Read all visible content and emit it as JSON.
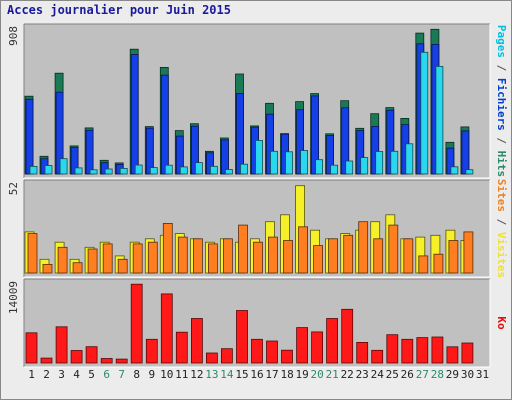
{
  "page": {
    "title": "Acces journalier pour Juin 2015"
  },
  "chart_data": [
    {
      "type": "bar",
      "title": "Pages / Fichiers / Hits",
      "categories": [
        "1",
        "2",
        "3",
        "4",
        "5",
        "6",
        "7",
        "8",
        "9",
        "10",
        "11",
        "12",
        "13",
        "14",
        "15",
        "16",
        "17",
        "18",
        "19",
        "20",
        "21",
        "22",
        "23",
        "24",
        "25",
        "26",
        "27",
        "28",
        "29",
        "30",
        "31"
      ],
      "weekend_days": [
        "6",
        "7",
        "13",
        "14",
        "20",
        "21",
        "27",
        "28"
      ],
      "ymax_label": "908",
      "ylim": [
        0,
        908
      ],
      "axis_label_parts": [
        {
          "text": "Pages",
          "color": "#00c0e0"
        },
        {
          "text": " / ",
          "color": "#555555"
        },
        {
          "text": "Fichiers",
          "color": "#0040d0"
        },
        {
          "text": " / ",
          "color": "#555555"
        },
        {
          "text": "Hits",
          "color": "#2a8a6a"
        }
      ],
      "series": [
        {
          "name": "Hits",
          "color": "#1a7a55",
          "values": [
            484,
            110,
            627,
            175,
            287,
            85,
            69,
            776,
            295,
            663,
            270,
            313,
            141,
            224,
            622,
            299,
            440,
            251,
            450,
            500,
            250,
            456,
            284,
            375,
            413,
            346,
            876,
            900,
            197,
            293,
            0
          ]
        },
        {
          "name": "Fichiers",
          "color": "#1540e8",
          "values": [
            465,
            95,
            509,
            165,
            272,
            70,
            60,
            743,
            285,
            615,
            236,
            297,
            132,
            212,
            501,
            291,
            372,
            248,
            400,
            486,
            240,
            412,
            270,
            296,
            397,
            307,
            810,
            806,
            161,
            268,
            0
          ]
        },
        {
          "name": "Pages",
          "color": "#2ad8ee",
          "values": [
            47,
            53,
            95,
            38,
            26,
            31,
            35,
            56,
            40,
            55,
            44,
            71,
            48,
            28,
            61,
            209,
            141,
            138,
            146,
            89,
            55,
            81,
            102,
            140,
            141,
            188,
            757,
            669,
            45,
            27,
            0
          ]
        }
      ]
    },
    {
      "type": "bar",
      "title": "Sites / Visites",
      "categories": [
        "1",
        "2",
        "3",
        "4",
        "5",
        "6",
        "7",
        "8",
        "9",
        "10",
        "11",
        "12",
        "13",
        "14",
        "15",
        "16",
        "17",
        "18",
        "19",
        "20",
        "21",
        "22",
        "23",
        "24",
        "25",
        "26",
        "27",
        "28",
        "29",
        "30",
        "31"
      ],
      "ymax_label": "52",
      "ylim": [
        0,
        52
      ],
      "axis_label_parts": [
        {
          "text": "Sites",
          "color": "#f08020"
        },
        {
          "text": " / ",
          "color": "#555555"
        },
        {
          "text": "Visites",
          "color": "#f0e030"
        }
      ],
      "series": [
        {
          "name": "Visites",
          "color": "#f5f028",
          "values": [
            24,
            8,
            18,
            8,
            15,
            18,
            10,
            18,
            20,
            22,
            23,
            20,
            18,
            20,
            18,
            20,
            30,
            34,
            51,
            25,
            20,
            23,
            25,
            30,
            34,
            20,
            21,
            22,
            25,
            19,
            0
          ]
        },
        {
          "name": "Sites",
          "color": "#ff7f20",
          "values": [
            23,
            5,
            15,
            6,
            14,
            17,
            8,
            17,
            18,
            29,
            21,
            20,
            17,
            20,
            28,
            18,
            21,
            19,
            27,
            16,
            20,
            22,
            30,
            20,
            28,
            20,
            10,
            11,
            19,
            24,
            0
          ]
        }
      ]
    },
    {
      "type": "bar",
      "title": "Ko",
      "categories": [
        "1",
        "2",
        "3",
        "4",
        "5",
        "6",
        "7",
        "8",
        "9",
        "10",
        "11",
        "12",
        "13",
        "14",
        "15",
        "16",
        "17",
        "18",
        "19",
        "20",
        "21",
        "22",
        "23",
        "24",
        "25",
        "26",
        "27",
        "28",
        "29",
        "30",
        "31"
      ],
      "ymax_label": "14009",
      "ylim": [
        0,
        14009
      ],
      "axis_label_parts": [
        {
          "text": "Ko",
          "color": "#e01010"
        }
      ],
      "series": [
        {
          "name": "Ko",
          "color": "#ff1818",
          "values": [
            5282,
            850,
            6340,
            2190,
            2850,
            780,
            680,
            13800,
            4150,
            12100,
            5400,
            7800,
            1750,
            2500,
            9200,
            4150,
            3850,
            2240,
            6200,
            5450,
            7800,
            9400,
            3600,
            2220,
            4950,
            4150,
            4450,
            4550,
            2830,
            3500,
            0
          ]
        }
      ]
    }
  ]
}
